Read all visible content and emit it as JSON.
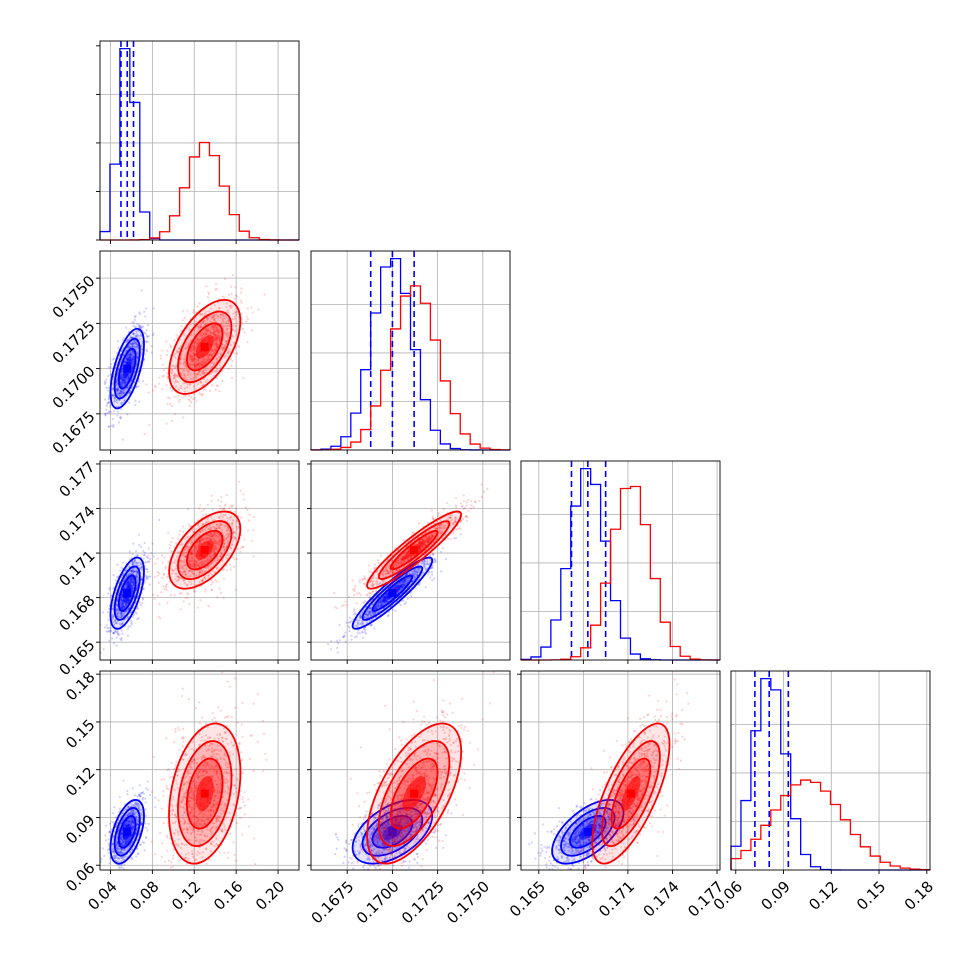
{
  "chart_data": {
    "type": "corner",
    "colors": {
      "blue": "#0000ff",
      "red": "#ff0000"
    },
    "grid": true,
    "parameters": [
      {
        "range": [
          0.03,
          0.22
        ],
        "ticks": [
          0.04,
          0.08,
          0.12,
          0.16,
          0.2
        ],
        "tick_labels": [
          "0.04",
          "0.08",
          "0.12",
          "0.16",
          "0.20"
        ]
      },
      {
        "range": [
          0.1655,
          0.1765
        ],
        "ticks": [
          0.1675,
          0.17,
          0.1725,
          0.175
        ],
        "tick_labels": [
          "0.1675",
          "0.1700",
          "0.1725",
          "0.1750"
        ]
      },
      {
        "range": [
          0.1638,
          0.1772
        ],
        "ticks": [
          0.165,
          0.168,
          0.171,
          0.174,
          0.177
        ],
        "tick_labels": [
          "0.165",
          "0.168",
          "0.171",
          "0.174",
          "0.177"
        ]
      },
      {
        "range": [
          0.057,
          0.182
        ],
        "ticks": [
          0.06,
          0.09,
          0.12,
          0.15,
          0.18
        ],
        "tick_labels": [
          "0.06",
          "0.09",
          "0.12",
          "0.15",
          "0.18"
        ]
      }
    ],
    "series": [
      {
        "color": "blue",
        "mean": [
          0.056,
          0.17,
          0.1683,
          0.081
        ],
        "sd": [
          0.008,
          0.0011,
          0.0012,
          0.01
        ],
        "quantiles": [
          [
            0.05,
            0.056,
            0.062
          ],
          [
            0.1688,
            0.17,
            0.1712
          ],
          [
            0.1672,
            0.1683,
            0.1695
          ],
          [
            0.072,
            0.081,
            0.093
          ]
        ],
        "corr": {
          "0-1": 0.6,
          "0-2": 0.6,
          "0-3": 0.5,
          "1-2": 0.92,
          "1-3": 0.5,
          "2-3": 0.6
        }
      },
      {
        "color": "red",
        "mean": [
          0.13,
          0.1712,
          0.1712,
          0.105
        ],
        "sd": [
          0.017,
          0.0013,
          0.0013,
          0.022
        ],
        "quantiles": [],
        "corr": {
          "0-1": 0.55,
          "0-2": 0.55,
          "0-3": 0.3,
          "1-2": 0.92,
          "1-3": 0.6,
          "2-3": 0.7
        }
      }
    ]
  }
}
